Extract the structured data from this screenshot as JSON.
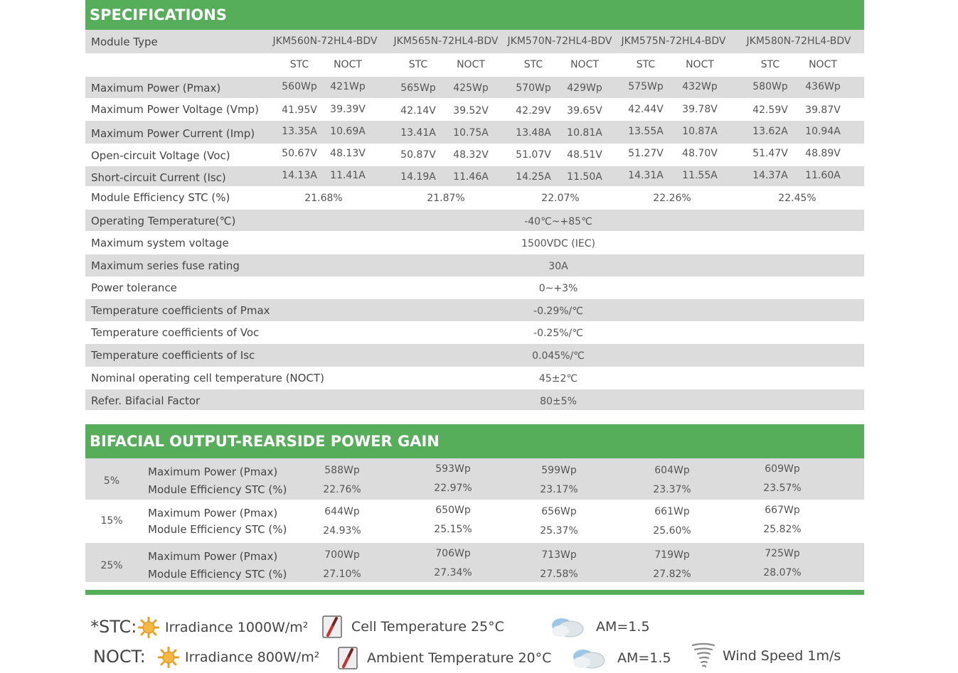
{
  "spec": {
    "title": "SPECIFICATIONS",
    "module_type_label": "Module Type",
    "modules": [
      "JKM560N-72HL4-BDV",
      "JKM565N-72HL4-BDV",
      "JKM570N-72HL4-BDV",
      "JKM575N-72HL4-BDV",
      "JKM580N-72HL4-BDV"
    ],
    "stc": "STC",
    "noct": "NOCT",
    "pair_rows": [
      {
        "label": "Maximum Power (Pmax)",
        "values": [
          "560Wp",
          "421Wp",
          "565Wp",
          "425Wp",
          "570Wp",
          "429Wp",
          "575Wp",
          "432Wp",
          "580Wp",
          "436Wp"
        ]
      },
      {
        "label": "Maximum Power Voltage (Vmp)",
        "values": [
          "41.95V",
          "39.39V",
          "42.14V",
          "39.52V",
          "42.29V",
          "39.65V",
          "42.44V",
          "39.78V",
          "42.59V",
          "39.87V"
        ]
      },
      {
        "label": "Maximum Power Current (Imp)",
        "values": [
          "13.35A",
          "10.69A",
          "13.41A",
          "10.75A",
          "13.48A",
          "10.81A",
          "13.55A",
          "10.87A",
          "13.62A",
          "10.94A"
        ]
      },
      {
        "label": "Open-circuit Voltage (Voc)",
        "values": [
          "50.67V",
          "48.13V",
          "50.87V",
          "48.32V",
          "51.07V",
          "48.51V",
          "51.27V",
          "48.70V",
          "51.47V",
          "48.89V"
        ]
      },
      {
        "label": "Short-circuit Current (Isc)",
        "values": [
          "14.13A",
          "11.41A",
          "14.19A",
          "11.46A",
          "14.25A",
          "11.50A",
          "14.31A",
          "11.55A",
          "14.37A",
          "11.60A"
        ]
      }
    ],
    "efficiency": {
      "label": "Module Efficiency STC (%)",
      "values": [
        "21.68%",
        "21.87%",
        "22.07%",
        "22.26%",
        "22.45%"
      ]
    },
    "single_rows": [
      {
        "label": "Operating Temperature(℃)",
        "value": "-40℃~+85℃"
      },
      {
        "label": "Maximum system voltage",
        "value": "1500VDC (IEC)"
      },
      {
        "label": "Maximum series fuse rating",
        "value": "30A"
      },
      {
        "label": "Power tolerance",
        "value": "0~+3%"
      },
      {
        "label": "Temperature coefficients of Pmax",
        "value": "-0.29%/℃"
      },
      {
        "label": "Temperature coefficients of Voc",
        "value": "-0.25%/℃"
      },
      {
        "label": "Temperature coefficients of Isc",
        "value": "0.045%/℃"
      },
      {
        "label": "Nominal operating cell temperature  (NOCT)",
        "value": "45±2℃"
      },
      {
        "label": "Refer. Bifacial Factor",
        "value": "80±5%"
      }
    ]
  },
  "bifacial": {
    "title": "BIFACIAL OUTPUT-REARSIDE POWER GAIN",
    "power_label": "Maximum Power (Pmax)",
    "eff_label": "Module Efficiency STC (%)",
    "groups": [
      {
        "gain": "5%",
        "power": [
          "588Wp",
          "593Wp",
          "599Wp",
          "604Wp",
          "609Wp"
        ],
        "eff": [
          "22.76%",
          "22.97%",
          "23.17%",
          "23.37%",
          "23.57%"
        ]
      },
      {
        "gain": "15%",
        "power": [
          "644Wp",
          "650Wp",
          "656Wp",
          "661Wp",
          "667Wp"
        ],
        "eff": [
          "24.93%",
          "25.15%",
          "25.37%",
          "25.60%",
          "25.82%"
        ]
      },
      {
        "gain": "25%",
        "power": [
          "700Wp",
          "706Wp",
          "713Wp",
          "719Wp",
          "725Wp"
        ],
        "eff": [
          "27.10%",
          "27.34%",
          "27.58%",
          "27.82%",
          "28.07%"
        ]
      }
    ]
  },
  "legend": {
    "stc_key": "*STC:",
    "noct_key": "NOCT:",
    "stc_irradiance": "Irradiance 1000W/m²",
    "noct_irradiance": "Irradiance 800W/m²",
    "stc_temp": "Cell Temperature 25°C",
    "noct_temp": "Ambient Temperature 20°C",
    "stc_am": "AM=1.5",
    "noct_am": "AM=1.5",
    "wind": "Wind Speed 1m/s",
    "icons": [
      "sun-icon",
      "thermometer-icon",
      "cloud-icon",
      "tornado-icon"
    ]
  },
  "colors": {
    "accent": "#56ad5a",
    "row_gray": "#dcdcdc",
    "text": "#444444"
  }
}
